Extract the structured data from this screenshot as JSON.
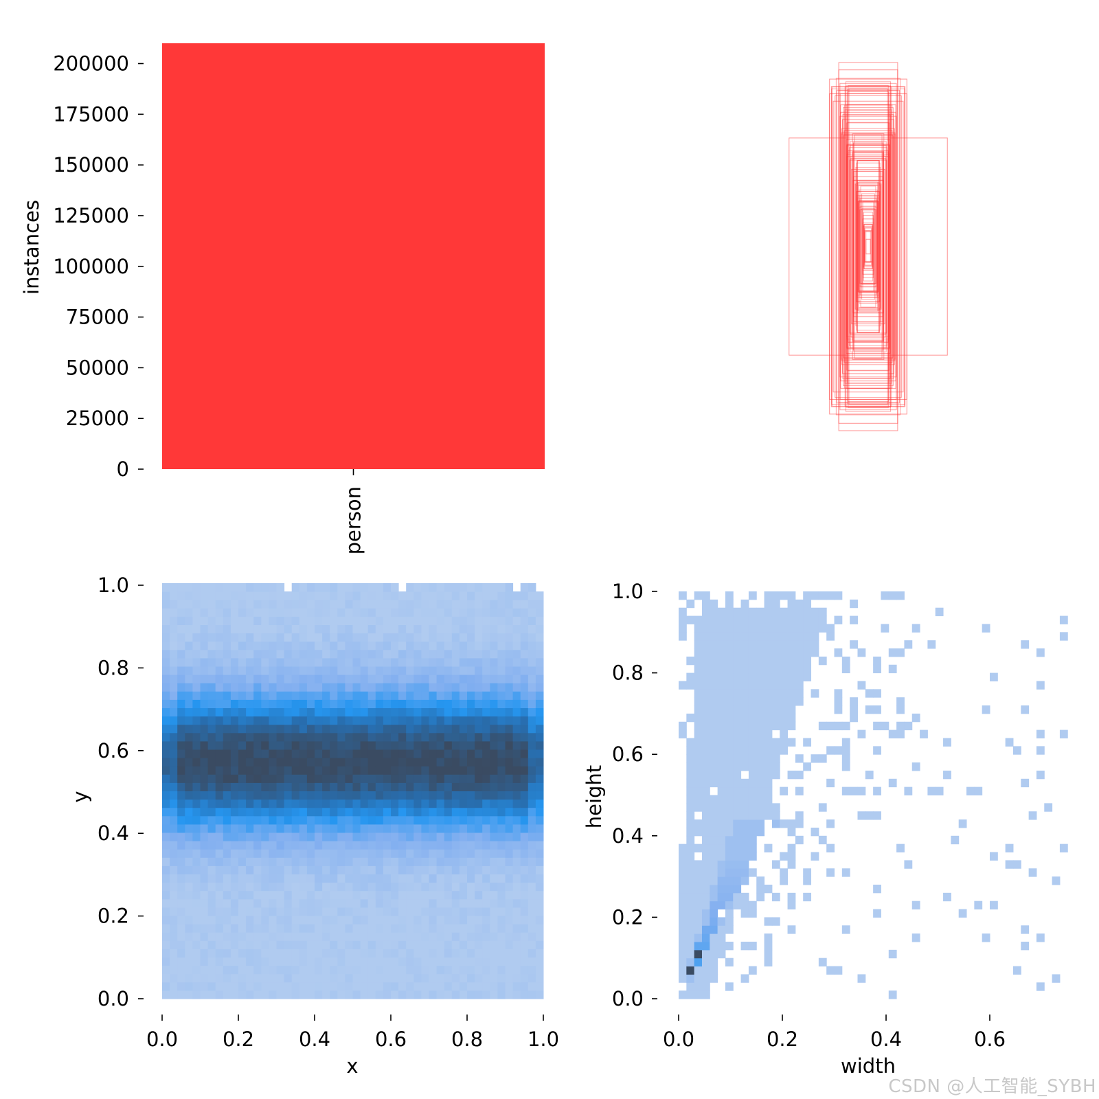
{
  "chart_data": [
    {
      "id": "instances",
      "type": "bar",
      "categories": [
        "person"
      ],
      "values": [
        210000
      ],
      "ylabel": "instances",
      "xlabel": "",
      "ylim": [
        0,
        210000
      ],
      "yticks": [
        0,
        25000,
        50000,
        75000,
        100000,
        125000,
        150000,
        175000,
        200000
      ],
      "ytick_labels": [
        "0",
        "25000",
        "50000",
        "75000",
        "100000",
        "125000",
        "150000",
        "175000",
        "200000"
      ],
      "color": "#ff3838"
    },
    {
      "id": "boxes",
      "type": "scatter",
      "title": "",
      "description_kind": "overlaid bounding boxes centered at (0.5, 0.5)",
      "color": "#ff3838",
      "boxes": [
        {
          "w": 0.43,
          "h": 0.59
        },
        {
          "w": 0.16,
          "h": 1.0
        },
        {
          "w": 0.16,
          "h": 0.96
        },
        {
          "w": 0.21,
          "h": 0.91
        },
        {
          "w": 0.21,
          "h": 0.83
        },
        {
          "w": 0.2,
          "h": 0.87
        },
        {
          "w": 0.18,
          "h": 0.82
        },
        {
          "w": 0.19,
          "h": 0.79
        },
        {
          "w": 0.17,
          "h": 0.85
        },
        {
          "w": 0.15,
          "h": 0.77
        },
        {
          "w": 0.15,
          "h": 0.73
        },
        {
          "w": 0.14,
          "h": 0.69
        },
        {
          "w": 0.13,
          "h": 0.63
        },
        {
          "w": 0.12,
          "h": 0.58
        },
        {
          "w": 0.11,
          "h": 0.52
        },
        {
          "w": 0.1,
          "h": 0.47
        },
        {
          "w": 0.09,
          "h": 0.42
        },
        {
          "w": 0.08,
          "h": 0.38
        },
        {
          "w": 0.07,
          "h": 0.34
        },
        {
          "w": 0.06,
          "h": 0.3
        },
        {
          "w": 0.05,
          "h": 0.25
        },
        {
          "w": 0.04,
          "h": 0.2
        },
        {
          "w": 0.03,
          "h": 0.15
        },
        {
          "w": 0.02,
          "h": 0.08
        },
        {
          "w": 0.012,
          "h": 0.04
        }
      ]
    },
    {
      "id": "xy",
      "type": "heatmap",
      "xlabel": "x",
      "ylabel": "y",
      "xlim": [
        0,
        1
      ],
      "ylim": [
        0,
        1
      ],
      "xticks": [
        "0.0",
        "0.2",
        "0.4",
        "0.6",
        "0.8",
        "1.0"
      ],
      "yticks": [
        "0.0",
        "0.2",
        "0.4",
        "0.6",
        "0.8",
        "1.0"
      ],
      "bins": 50,
      "y_center": 0.57,
      "y_spread": 0.17
    },
    {
      "id": "wh",
      "type": "heatmap",
      "xlabel": "width",
      "ylabel": "height",
      "xlim": [
        0,
        0.75
      ],
      "ylim": [
        0,
        1
      ],
      "xticks": [
        "0.0",
        "0.2",
        "0.4",
        "0.6"
      ],
      "yticks": [
        "0.0",
        "0.2",
        "0.4",
        "0.6",
        "0.8",
        "1.0"
      ],
      "bins": 50,
      "main_slope": 0.35
    }
  ],
  "watermark": "CSDN @人工智能_SYBH"
}
